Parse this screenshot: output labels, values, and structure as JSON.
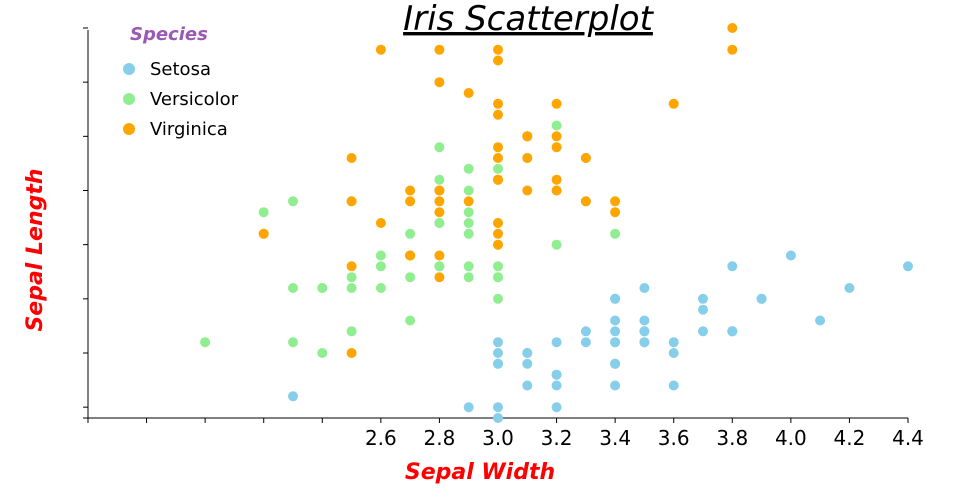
{
  "chart_data": {
    "type": "scatter",
    "title": "Iris Scatterplot",
    "xlabel": "Sepal Width",
    "ylabel": "Sepal Length",
    "xlim": [
      1.6,
      4.4
    ],
    "ylim": [
      4.3,
      7.9
    ],
    "x_ticks": [
      1.6,
      1.8,
      2.0,
      2.2,
      2.4,
      2.6,
      2.8,
      3.0,
      3.2,
      3.4,
      3.6,
      3.8,
      4.0,
      4.2,
      4.4
    ],
    "x_tick_labels": [
      "",
      "",
      "",
      "",
      "",
      "2.6",
      "2.8",
      "3.0",
      "3.2",
      "3.4",
      "3.6",
      "3.8",
      "4.0",
      "4.2",
      "4.4"
    ],
    "y_ticks": [
      4.3,
      4.4,
      4.9,
      5.4,
      5.9,
      6.4,
      6.9,
      7.4,
      7.9
    ],
    "y_tick_labels": [
      "",
      "",
      "",
      "",
      "",
      "",
      "",
      "",
      ""
    ],
    "legend": {
      "title": "Species",
      "placement": "top-left"
    },
    "series": [
      {
        "name": "Setosa",
        "color": "#87ceeb",
        "points": [
          [
            3.5,
            5.1
          ],
          [
            3.0,
            4.9
          ],
          [
            3.2,
            4.7
          ],
          [
            3.1,
            4.6
          ],
          [
            3.6,
            5.0
          ],
          [
            3.9,
            5.4
          ],
          [
            3.4,
            4.6
          ],
          [
            3.4,
            5.0
          ],
          [
            2.9,
            4.4
          ],
          [
            3.1,
            4.9
          ],
          [
            3.7,
            5.4
          ],
          [
            3.4,
            4.8
          ],
          [
            3.0,
            4.8
          ],
          [
            3.0,
            4.3
          ],
          [
            4.0,
            5.8
          ],
          [
            4.4,
            5.7
          ],
          [
            3.9,
            5.4
          ],
          [
            3.5,
            5.1
          ],
          [
            3.8,
            5.7
          ],
          [
            3.8,
            5.1
          ],
          [
            3.4,
            5.4
          ],
          [
            3.7,
            5.1
          ],
          [
            3.6,
            4.6
          ],
          [
            3.3,
            5.1
          ],
          [
            3.4,
            4.8
          ],
          [
            3.0,
            5.0
          ],
          [
            3.4,
            5.0
          ],
          [
            3.5,
            5.2
          ],
          [
            3.4,
            5.2
          ],
          [
            3.2,
            4.7
          ],
          [
            3.1,
            4.8
          ],
          [
            3.4,
            5.4
          ],
          [
            4.1,
            5.2
          ],
          [
            4.2,
            5.5
          ],
          [
            3.1,
            4.9
          ],
          [
            3.2,
            5.0
          ],
          [
            3.5,
            5.5
          ],
          [
            3.6,
            4.9
          ],
          [
            3.0,
            4.4
          ],
          [
            3.4,
            5.1
          ],
          [
            3.5,
            5.0
          ],
          [
            2.3,
            4.5
          ],
          [
            3.2,
            4.4
          ],
          [
            3.5,
            5.0
          ],
          [
            3.8,
            5.1
          ],
          [
            3.0,
            4.8
          ],
          [
            3.8,
            5.1
          ],
          [
            3.2,
            4.6
          ],
          [
            3.7,
            5.3
          ],
          [
            3.3,
            5.0
          ]
        ]
      },
      {
        "name": "Versicolor",
        "color": "#90ee90",
        "points": [
          [
            3.2,
            7.0
          ],
          [
            3.2,
            6.4
          ],
          [
            3.1,
            6.9
          ],
          [
            2.3,
            5.5
          ],
          [
            2.8,
            6.5
          ],
          [
            2.8,
            5.7
          ],
          [
            3.3,
            6.3
          ],
          [
            2.4,
            4.9
          ],
          [
            2.9,
            6.6
          ],
          [
            2.7,
            5.2
          ],
          [
            2.0,
            5.0
          ],
          [
            3.0,
            5.9
          ],
          [
            2.2,
            6.0
          ],
          [
            2.9,
            6.1
          ],
          [
            2.9,
            5.6
          ],
          [
            3.1,
            6.7
          ],
          [
            3.0,
            5.6
          ],
          [
            2.7,
            5.8
          ],
          [
            2.2,
            6.2
          ],
          [
            2.5,
            5.6
          ],
          [
            3.2,
            5.9
          ],
          [
            2.8,
            6.1
          ],
          [
            2.5,
            6.3
          ],
          [
            2.8,
            6.1
          ],
          [
            2.9,
            6.4
          ],
          [
            3.0,
            6.6
          ],
          [
            2.8,
            6.8
          ],
          [
            3.0,
            6.7
          ],
          [
            2.9,
            6.0
          ],
          [
            2.6,
            5.7
          ],
          [
            2.4,
            5.5
          ],
          [
            2.4,
            5.5
          ],
          [
            2.7,
            5.8
          ],
          [
            2.7,
            6.0
          ],
          [
            3.0,
            5.4
          ],
          [
            3.4,
            6.0
          ],
          [
            3.1,
            6.7
          ],
          [
            2.3,
            6.3
          ],
          [
            3.0,
            5.6
          ],
          [
            2.5,
            5.5
          ],
          [
            2.6,
            5.5
          ],
          [
            3.0,
            6.1
          ],
          [
            2.6,
            5.8
          ],
          [
            2.3,
            5.0
          ],
          [
            2.7,
            5.6
          ],
          [
            3.0,
            5.7
          ],
          [
            2.9,
            5.7
          ],
          [
            2.9,
            6.2
          ],
          [
            2.5,
            5.1
          ],
          [
            2.8,
            5.7
          ]
        ]
      },
      {
        "name": "Virginica",
        "color": "#ffa500",
        "points": [
          [
            3.3,
            6.3
          ],
          [
            2.7,
            5.8
          ],
          [
            3.0,
            7.1
          ],
          [
            2.9,
            6.3
          ],
          [
            3.0,
            6.5
          ],
          [
            3.0,
            7.6
          ],
          [
            2.5,
            4.9
          ],
          [
            2.9,
            7.3
          ],
          [
            2.5,
            6.7
          ],
          [
            3.6,
            7.2
          ],
          [
            3.2,
            6.5
          ],
          [
            2.7,
            6.4
          ],
          [
            3.0,
            6.8
          ],
          [
            2.5,
            5.7
          ],
          [
            2.8,
            5.8
          ],
          [
            3.2,
            6.4
          ],
          [
            3.0,
            6.5
          ],
          [
            3.8,
            7.7
          ],
          [
            2.6,
            7.7
          ],
          [
            2.2,
            6.0
          ],
          [
            3.2,
            6.9
          ],
          [
            2.8,
            5.6
          ],
          [
            2.8,
            7.7
          ],
          [
            2.7,
            6.3
          ],
          [
            3.3,
            6.7
          ],
          [
            3.2,
            7.2
          ],
          [
            2.8,
            6.2
          ],
          [
            3.0,
            6.1
          ],
          [
            2.8,
            6.4
          ],
          [
            3.0,
            7.2
          ],
          [
            2.8,
            7.4
          ],
          [
            3.8,
            7.9
          ],
          [
            2.8,
            6.4
          ],
          [
            2.8,
            6.3
          ],
          [
            2.6,
            6.1
          ],
          [
            3.0,
            7.7
          ],
          [
            3.4,
            6.3
          ],
          [
            3.1,
            6.4
          ],
          [
            3.0,
            6.0
          ],
          [
            3.1,
            6.9
          ],
          [
            3.1,
            6.7
          ],
          [
            3.1,
            6.9
          ],
          [
            2.7,
            5.8
          ],
          [
            3.2,
            6.8
          ],
          [
            3.3,
            6.7
          ],
          [
            3.0,
            6.7
          ],
          [
            2.5,
            6.3
          ],
          [
            3.0,
            6.5
          ],
          [
            3.4,
            6.2
          ],
          [
            3.0,
            5.9
          ]
        ]
      }
    ]
  }
}
